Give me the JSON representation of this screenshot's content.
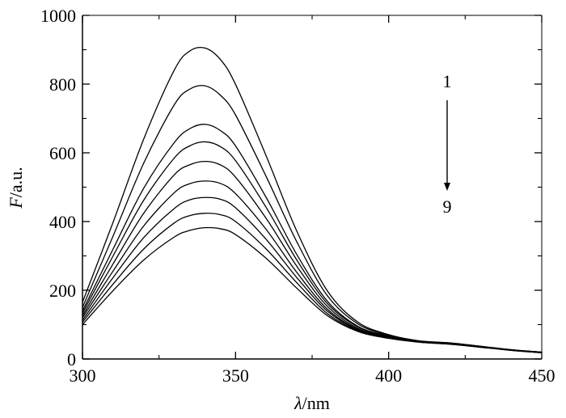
{
  "chart_data": {
    "type": "line",
    "title": "",
    "xlabel": {
      "italic": "λ",
      "rest": "/nm"
    },
    "ylabel": {
      "italic": "F",
      "rest": "/a.u."
    },
    "xlim": [
      300,
      450
    ],
    "ylim": [
      0,
      1000
    ],
    "xticks": [
      "300",
      "350",
      "400",
      "450"
    ],
    "yticks": [
      "0",
      "200",
      "400",
      "600",
      "800",
      "1000"
    ],
    "grid": false,
    "legend": "none",
    "line_color": "#000000",
    "x": [
      300,
      310,
      320,
      330,
      335,
      340,
      345,
      350,
      360,
      370,
      380,
      390,
      400,
      410,
      420,
      430,
      440,
      450
    ],
    "series": [
      {
        "values": [
          165,
          398,
          640,
          841,
          896,
          905,
          872,
          799,
          591,
          372,
          198,
          107,
          71,
          53,
          47,
          37,
          27,
          20
        ]
      },
      {
        "values": [
          150,
          358,
          570,
          740,
          785,
          795,
          768,
          710,
          531,
          341,
          184,
          102,
          69,
          52,
          46,
          37,
          27,
          20
        ]
      },
      {
        "values": [
          140,
          320,
          497,
          630,
          670,
          683,
          665,
          620,
          470,
          304,
          168,
          95,
          67,
          52,
          46,
          36,
          26,
          19
        ]
      },
      {
        "values": [
          133,
          300,
          462,
          585,
          620,
          632,
          618,
          577,
          441,
          288,
          161,
          93,
          66,
          51,
          45,
          36,
          26,
          19
        ]
      },
      {
        "values": [
          126,
          277,
          424,
          536,
          565,
          575,
          565,
          529,
          409,
          270,
          153,
          89,
          65,
          51,
          45,
          36,
          26,
          19
        ]
      },
      {
        "values": [
          120,
          256,
          387,
          484,
          510,
          518,
          511,
          481,
          377,
          252,
          145,
          86,
          63,
          50,
          44,
          35,
          26,
          19
        ]
      },
      {
        "values": [
          113,
          237,
          353,
          438,
          463,
          470,
          465,
          440,
          348,
          237,
          139,
          84,
          62,
          50,
          44,
          35,
          26,
          18
        ]
      },
      {
        "values": [
          107,
          218,
          320,
          396,
          417,
          424,
          420,
          400,
          320,
          222,
          132,
          82,
          61,
          49,
          43,
          35,
          25,
          18
        ]
      },
      {
        "values": [
          100,
          199,
          288,
          355,
          374,
          382,
          379,
          362,
          293,
          206,
          126,
          80,
          60,
          49,
          43,
          34,
          25,
          18
        ]
      }
    ],
    "annotation": {
      "start_label": "1",
      "end_label": "9"
    }
  }
}
